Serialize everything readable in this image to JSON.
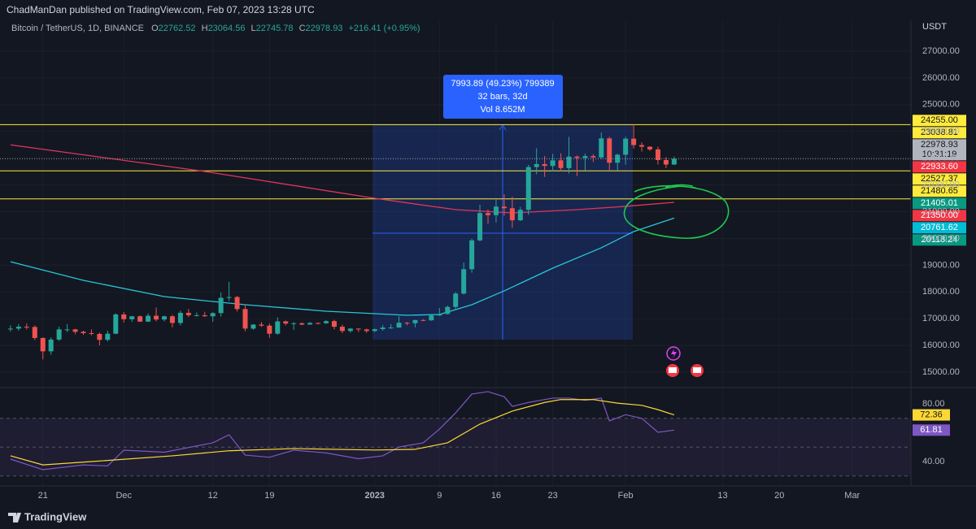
{
  "header": {
    "publisher": "ChadManDan published on TradingView.com, Feb 07, 2023 13:28 UTC"
  },
  "footer": {
    "brand": "TradingView"
  },
  "chart_data": [
    {
      "type": "candlestick",
      "title": "Bitcoin / TetherUS, 1D, BINANCE",
      "ohlc_letters": [
        "O",
        "H",
        "L",
        "C"
      ],
      "change": "+216.41 (+0.95%)",
      "currency": "USDT",
      "up_color": "#26a69a",
      "down_color": "#ef5350",
      "open": [
        16600,
        16630,
        16700,
        16690,
        16280,
        15780,
        16220,
        16600,
        16600,
        16510,
        16460,
        16430,
        16210,
        16440,
        17160,
        16980,
        17090,
        16890,
        17110,
        16970,
        17090,
        16840,
        17220,
        17130,
        17130,
        17090,
        17210,
        17780,
        17810,
        17360,
        16630,
        16780,
        16740,
        16440,
        16900,
        16820,
        16830,
        16780,
        16840,
        16830,
        16910,
        16700,
        16540,
        16630,
        16600,
        16540,
        16610,
        16670,
        16670,
        16850,
        16830,
        16950,
        16940,
        17120,
        17180,
        17440,
        17940,
        18850,
        19930,
        20950,
        20870,
        21190,
        21130,
        20680,
        21070,
        22670,
        22780,
        22710,
        22920,
        22630,
        23060,
        23010,
        23080,
        23030,
        23740,
        22830,
        23130,
        23730,
        23490,
        23430,
        23330,
        22930,
        22762.52
      ],
      "high": [
        16750,
        16800,
        16820,
        16750,
        16300,
        16300,
        16700,
        16800,
        16620,
        16550,
        16600,
        16480,
        16550,
        17200,
        17250,
        17100,
        17120,
        17200,
        17420,
        17110,
        17140,
        17300,
        17360,
        17230,
        17260,
        17240,
        17980,
        18380,
        17850,
        17530,
        16800,
        16880,
        16820,
        17050,
        16930,
        16870,
        16860,
        16880,
        16860,
        16940,
        16960,
        16780,
        16650,
        16640,
        16630,
        16630,
        16760,
        16800,
        17090,
        16880,
        16960,
        16980,
        17180,
        17400,
        17490,
        18000,
        19100,
        19990,
        21260,
        21080,
        21450,
        21650,
        21560,
        21180,
        22750,
        23370,
        23080,
        23160,
        23180,
        23800,
        23100,
        23170,
        23150,
        23960,
        23800,
        23170,
        23800,
        24255,
        23590,
        23440,
        23430,
        23040,
        23064.56
      ],
      "low": [
        16520,
        16550,
        16600,
        16200,
        15480,
        15650,
        16170,
        16500,
        16420,
        16400,
        16380,
        16000,
        16150,
        16420,
        16860,
        16880,
        16880,
        16880,
        16900,
        16900,
        16680,
        16750,
        17060,
        17080,
        17070,
        16880,
        17080,
        17660,
        17270,
        16530,
        16580,
        16690,
        16290,
        16400,
        16750,
        16580,
        16760,
        16780,
        16790,
        16810,
        16600,
        16460,
        16480,
        16500,
        16470,
        16500,
        16550,
        16620,
        16660,
        16750,
        16680,
        16910,
        16920,
        17100,
        17150,
        17320,
        17900,
        18720,
        19890,
        20550,
        20600,
        20850,
        20400,
        20650,
        20880,
        22400,
        22300,
        22500,
        22520,
        22430,
        22330,
        22550,
        22860,
        22980,
        22560,
        22550,
        22760,
        23360,
        23250,
        23270,
        22760,
        22630,
        22745.78
      ],
      "close": [
        16630,
        16700,
        16690,
        16280,
        15780,
        16220,
        16600,
        16600,
        16510,
        16460,
        16430,
        16210,
        16440,
        17160,
        16980,
        17090,
        16890,
        17110,
        16970,
        17090,
        16840,
        17220,
        17130,
        17130,
        17090,
        17210,
        17780,
        17810,
        17360,
        16630,
        16780,
        16740,
        16440,
        16900,
        16820,
        16830,
        16780,
        16840,
        16830,
        16910,
        16700,
        16540,
        16630,
        16600,
        16540,
        16610,
        16670,
        16670,
        16850,
        16830,
        16950,
        16940,
        17120,
        17180,
        17440,
        17940,
        18850,
        19930,
        20950,
        20870,
        21190,
        21130,
        20680,
        21070,
        22670,
        22780,
        22710,
        22920,
        22630,
        23060,
        23010,
        23080,
        23030,
        23740,
        22830,
        23130,
        23730,
        23490,
        23430,
        23330,
        22930,
        22762.52,
        22978.93
      ],
      "xlim": [
        -1.3,
        111.26
      ],
      "xticks": [
        {
          "value": 4,
          "label": "21"
        },
        {
          "value": 14,
          "label": "Dec"
        },
        {
          "value": 25,
          "label": "12"
        },
        {
          "value": 32,
          "label": "19"
        },
        {
          "value": 45,
          "label": "2023",
          "bold": true
        },
        {
          "value": 53,
          "label": "9"
        },
        {
          "value": 60,
          "label": "16"
        },
        {
          "value": 67,
          "label": "23"
        },
        {
          "value": 76,
          "label": "Feb"
        },
        {
          "value": 88,
          "label": "13"
        },
        {
          "value": 95,
          "label": "20"
        },
        {
          "value": 104,
          "label": "Mar"
        }
      ],
      "ylim": [
        14485,
        28154
      ],
      "yticks": [
        {
          "value": 15000,
          "label": "15000.00"
        },
        {
          "value": 16000,
          "label": "16000.00"
        },
        {
          "value": 17000,
          "label": "17000.00"
        },
        {
          "value": 18000,
          "label": "18000.00"
        },
        {
          "value": 19000,
          "label": "19000.00"
        },
        {
          "value": 20000,
          "label": "20000.00"
        },
        {
          "value": 21000,
          "label": "21000.00"
        },
        {
          "value": 22000,
          "label": "22000.00"
        },
        {
          "value": 23000,
          "label": "23000.00"
        },
        {
          "value": 24000,
          "label": "24000.00"
        },
        {
          "value": 25000,
          "label": "25000.00"
        },
        {
          "value": 26000,
          "label": "26000.00"
        },
        {
          "value": 27000,
          "label": "27000.00"
        }
      ],
      "lines": [
        {
          "color": "#e0365b",
          "x": [
            0,
            24,
            45,
            55,
            62,
            70,
            76,
            82
          ],
          "values": [
            23500,
            22504,
            21502,
            21076,
            20955,
            21076,
            21200,
            21350
          ]
        },
        {
          "color": "#26c6da",
          "x": [
            0,
            9,
            19,
            29,
            39,
            49,
            53,
            57,
            61,
            67,
            73,
            77,
            82
          ],
          "values": [
            19130,
            18434,
            17826,
            17522,
            17280,
            17128,
            17158,
            17522,
            18040,
            18890,
            19650,
            20257,
            20761.62
          ]
        }
      ],
      "levels": [
        {
          "value": 24255,
          "label": "24255.00",
          "color": "#ffeb3b",
          "line": true
        },
        {
          "value": 23038.81,
          "color": "#ffeb3b",
          "line": false
        },
        {
          "value": 22933.6,
          "label": "22933.60",
          "color": "#f23645",
          "line": false
        },
        {
          "value": 22527.37,
          "color": "#ffeb3b",
          "line": true
        },
        {
          "value": 21480.65,
          "color": "#ffeb3b",
          "line": true
        },
        {
          "value": 21405.01,
          "color": "#089981",
          "line": false
        },
        {
          "value": 21350,
          "label": "21350.00",
          "color": "#f23645",
          "line": false
        },
        {
          "value": 20761.62,
          "color": "#00bcd4",
          "line": false
        },
        {
          "value": 20118.24,
          "color": "#089981",
          "line": false
        }
      ],
      "last_color": "#b2b5be",
      "countdown": "10:31:19",
      "measure": [
        "7993.89 (49.23%) 799389",
        "32 bars, 32d",
        "Vol 8.652M"
      ]
    },
    {
      "type": "line",
      "ylim": [
        24.8,
        89.6
      ],
      "yticks": [
        {
          "value": 80,
          "label": "80.00"
        },
        {
          "value": 40,
          "label": "40.00"
        }
      ],
      "levels": [
        70,
        50,
        30
      ],
      "lines": [
        {
          "color": "#7e57c2",
          "x": [
            0,
            4,
            9,
            12,
            14,
            19,
            25,
            27,
            29,
            32,
            35,
            39,
            43,
            46,
            48,
            51,
            53,
            55,
            57,
            59,
            61,
            62,
            64,
            67,
            69,
            71,
            73,
            74,
            76,
            78,
            80,
            82
          ],
          "values": [
            41.7,
            34.4,
            37.7,
            37,
            47.9,
            46.5,
            53,
            58.6,
            44.5,
            43,
            47.9,
            46,
            42,
            44,
            50.1,
            53,
            62.5,
            73.8,
            86.8,
            88.5,
            85,
            78.3,
            81,
            84,
            84,
            82.5,
            84,
            68.2,
            72.5,
            70,
            60.3,
            61.81
          ]
        },
        {
          "color": "#fdd835",
          "x": [
            0,
            4,
            10,
            20,
            27,
            35,
            45,
            50,
            54,
            58,
            62,
            66,
            68,
            72,
            75,
            78,
            80,
            82
          ],
          "values": [
            44,
            37.7,
            40,
            44,
            47.5,
            49,
            48,
            48.5,
            53,
            66,
            75,
            81,
            83,
            83,
            80.5,
            79,
            76,
            72.36
          ]
        }
      ]
    }
  ]
}
